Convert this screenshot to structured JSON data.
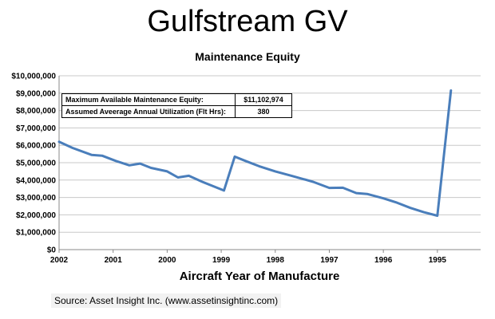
{
  "page_title": "Gulfstream GV",
  "source": "Source: Asset Insight Inc. (www.assetinsightinc.com)",
  "info": {
    "max_label": "Maximum Available Maintenance Equity:",
    "max_value": "$11,102,974",
    "util_label": "Assumed Aveerage Annual Utilization (Flt Hrs):",
    "util_value": "380"
  },
  "chart_data": {
    "type": "line",
    "title": "Maintenance Equity",
    "xlabel": "Aircraft Year of Manufacture",
    "ylabel": "",
    "ylim": [
      0,
      10000000
    ],
    "y_ticks": [
      "$0",
      "$1,000,000",
      "$2,000,000",
      "$3,000,000",
      "$4,000,000",
      "$5,000,000",
      "$6,000,000",
      "$7,000,000",
      "$8,000,000",
      "$9,000,000",
      "$10,000,000"
    ],
    "x_ticks": [
      "2002",
      "2001",
      "2000",
      "1999",
      "1998",
      "1997",
      "1996",
      "1995"
    ],
    "x_range": [
      2002,
      1994.2
    ],
    "grid": true,
    "series": [
      {
        "color": "#4a7ebb",
        "points": [
          [
            2002.0,
            6200000
          ],
          [
            2001.75,
            5850000
          ],
          [
            2001.4,
            5450000
          ],
          [
            2001.2,
            5400000
          ],
          [
            2000.95,
            5100000
          ],
          [
            2000.7,
            4850000
          ],
          [
            2000.5,
            4950000
          ],
          [
            2000.3,
            4700000
          ],
          [
            2000.0,
            4500000
          ],
          [
            1999.8,
            4150000
          ],
          [
            1999.6,
            4250000
          ],
          [
            1999.35,
            3900000
          ],
          [
            1998.95,
            3400000
          ],
          [
            1998.75,
            5350000
          ],
          [
            1998.55,
            5100000
          ],
          [
            1998.3,
            4800000
          ],
          [
            1998.0,
            4500000
          ],
          [
            1997.7,
            4250000
          ],
          [
            1997.3,
            3900000
          ],
          [
            1997.0,
            3550000
          ],
          [
            1996.75,
            3560000
          ],
          [
            1996.5,
            3250000
          ],
          [
            1996.3,
            3200000
          ],
          [
            1996.0,
            2950000
          ],
          [
            1995.75,
            2700000
          ],
          [
            1995.5,
            2400000
          ],
          [
            1995.25,
            2150000
          ],
          [
            1995.0,
            1950000
          ],
          [
            1994.75,
            9150000
          ]
        ]
      }
    ]
  }
}
